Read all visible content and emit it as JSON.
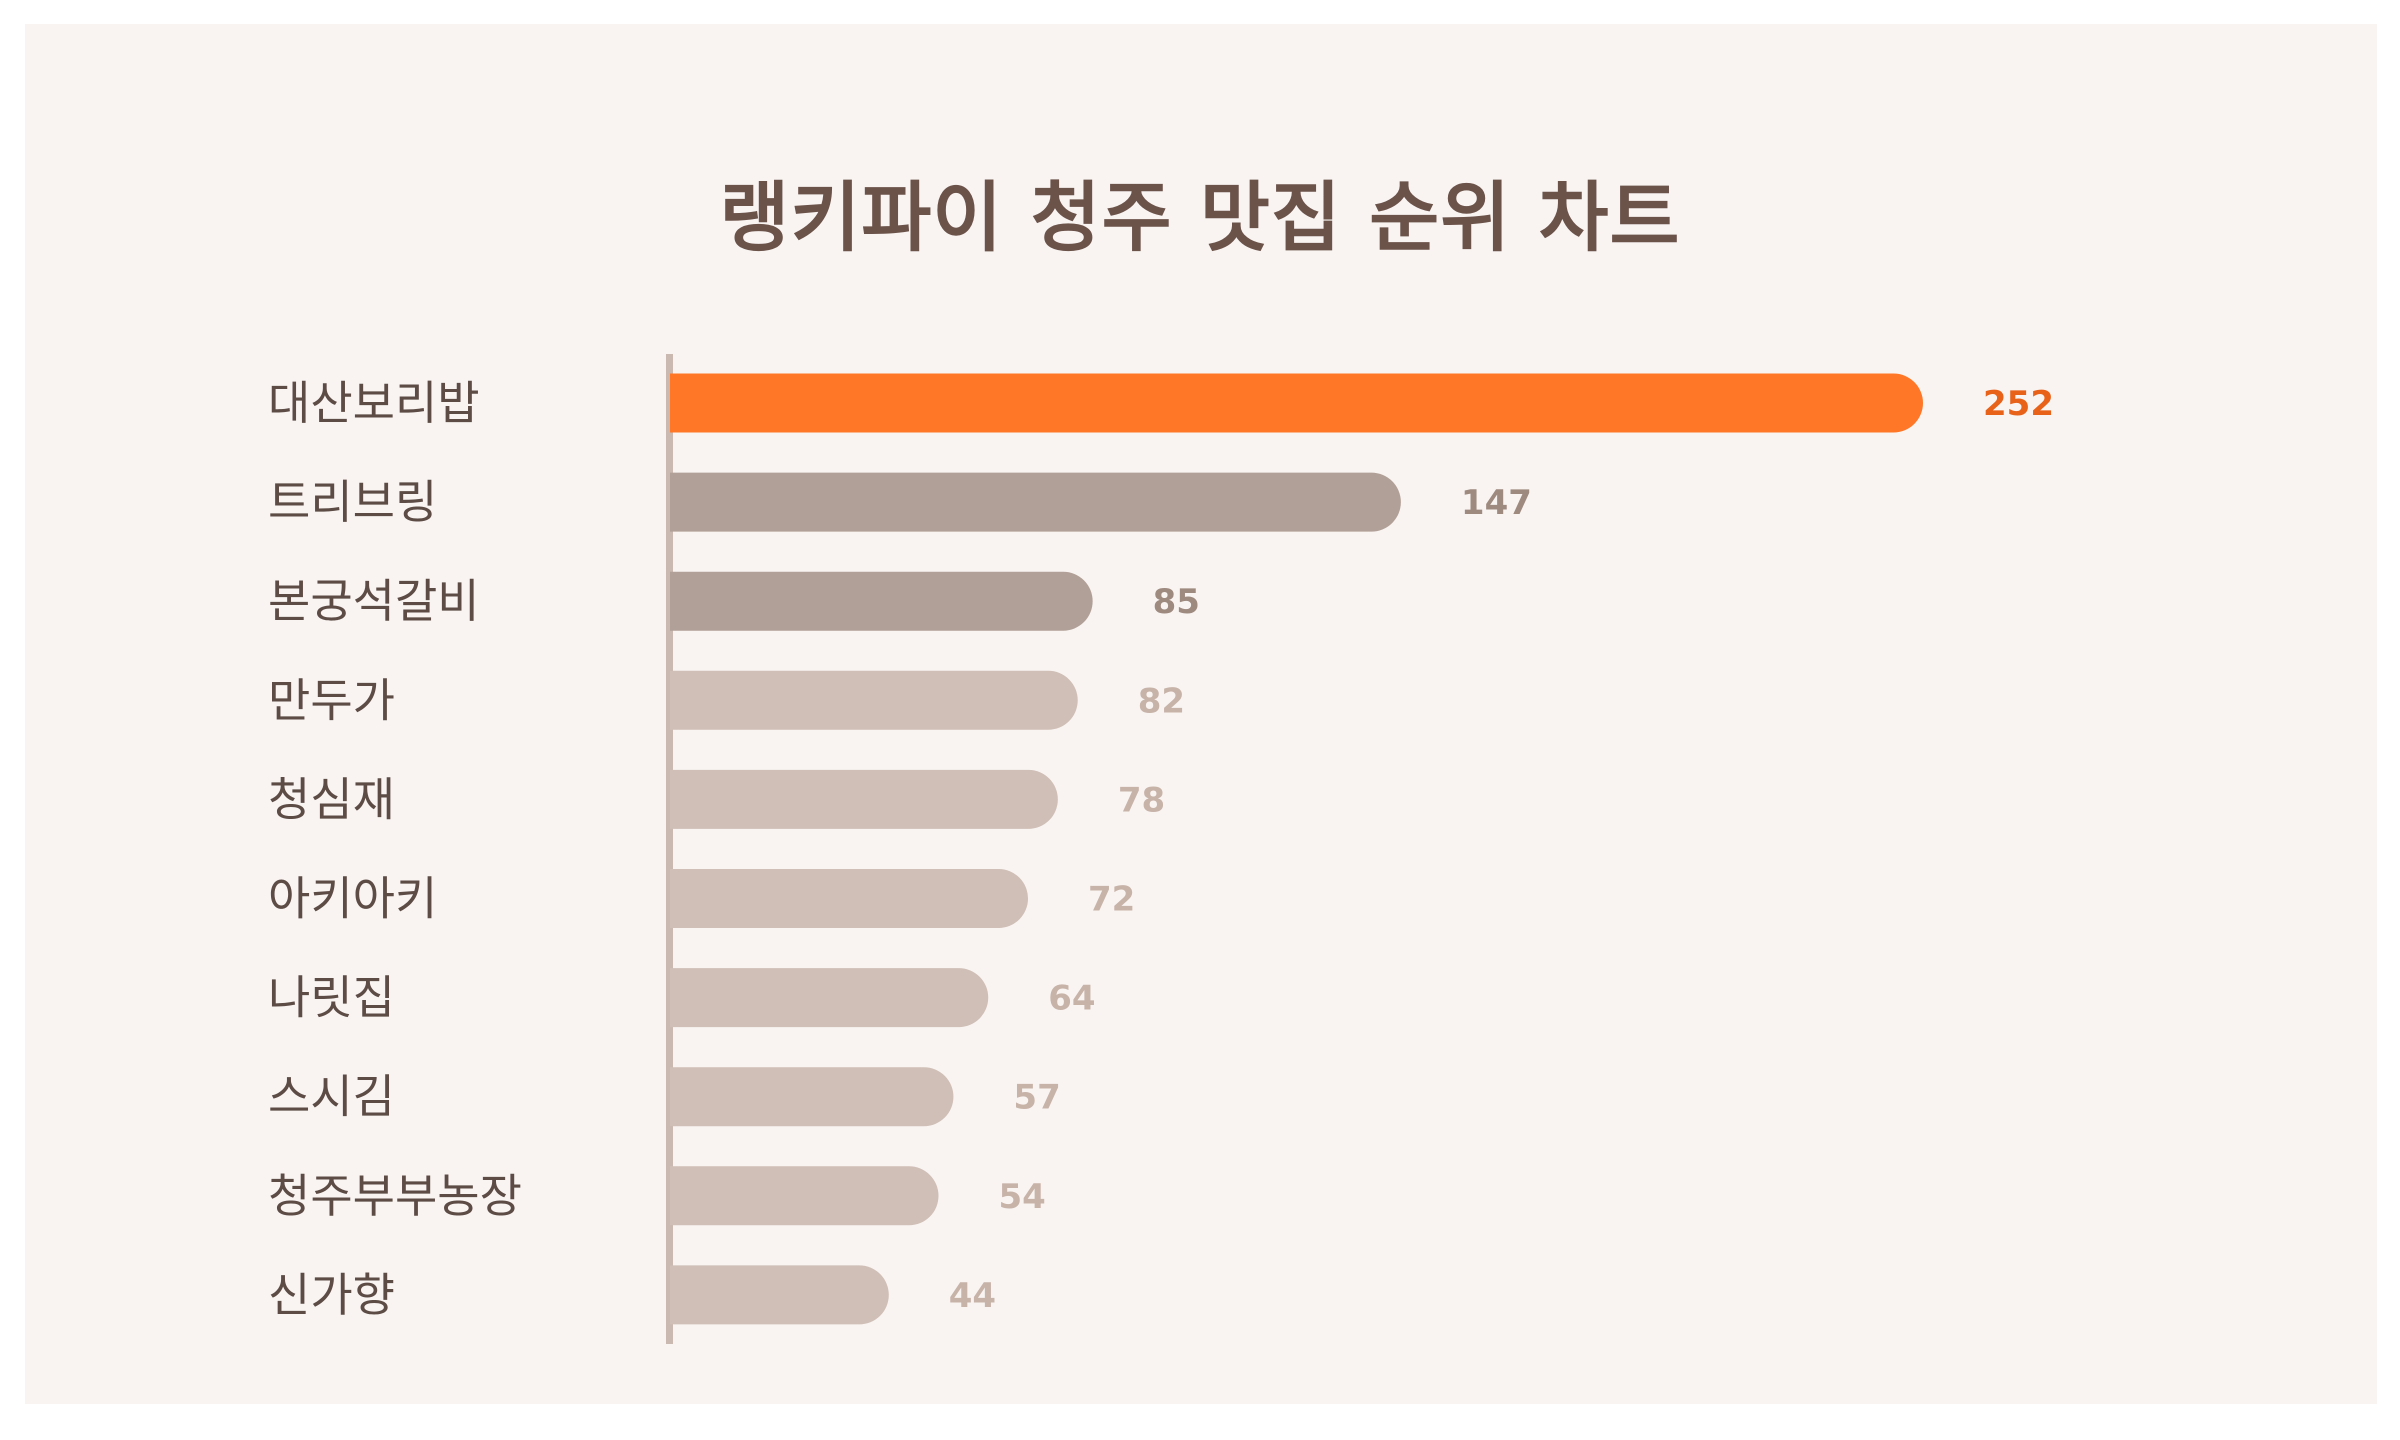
{
  "chart_data": {
    "type": "bar",
    "orientation": "horizontal",
    "title": "랭키파이 청주 맛집 순위 차트",
    "categories": [
      "대산보리밥",
      "트리브링",
      "본궁석갈비",
      "만두가",
      "청심재",
      "아키아키",
      "나릿집",
      "스시김",
      "청주부부농장",
      "신가향"
    ],
    "values": [
      252,
      147,
      85,
      82,
      78,
      72,
      64,
      57,
      54,
      44
    ],
    "xlim": [
      0,
      252
    ],
    "grid": false,
    "legend": "none"
  },
  "colors": {
    "background": "#f9f4f2",
    "title": "#6b534a",
    "highlight_bar": "#ff7727",
    "highlight_label": "#e8621a",
    "mid_bar": "#b1a097",
    "mid_label": "#9e8a7f",
    "light_bar": "#cfbfb6",
    "light_label": "#c7b3a8",
    "axis": "#c9b9b1",
    "category_text": "#5d4c46"
  }
}
